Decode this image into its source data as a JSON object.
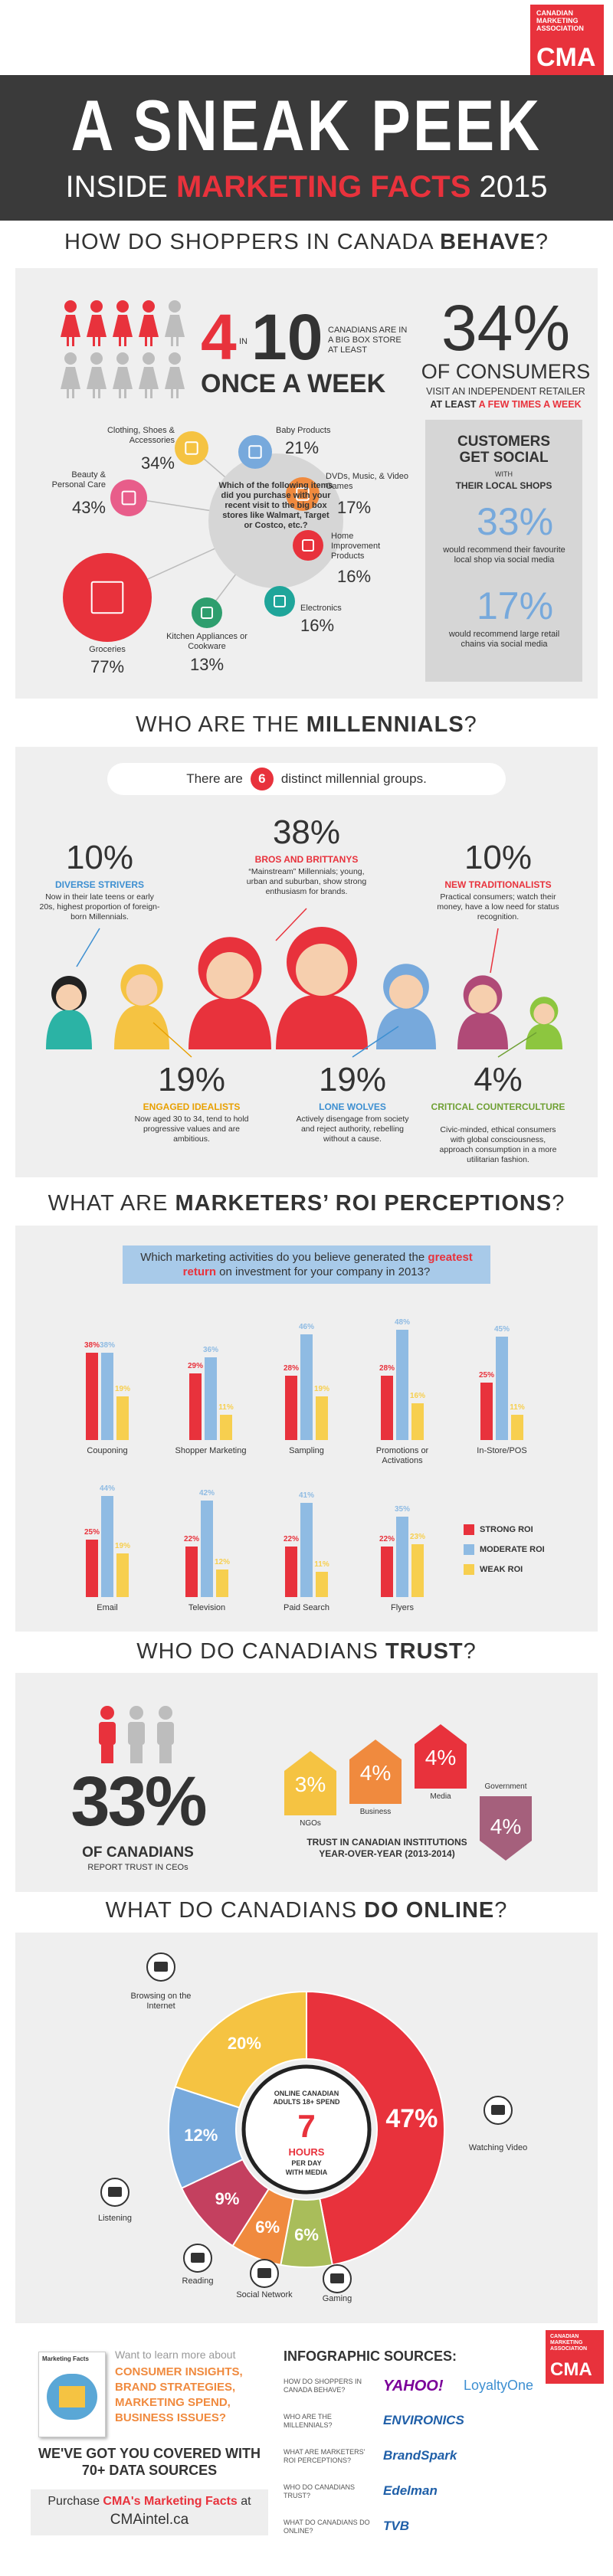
{
  "header": {
    "org": "CANADIAN MARKETING ASSOCIATION",
    "logo": "CMA",
    "title": "A SNEAK PEEK",
    "subtitle": [
      "INSIDE",
      "MARKETING FACTS",
      "2015"
    ]
  },
  "shoppers": {
    "heading": [
      "HOW DO SHOPPERS IN CANADA",
      "BEHAVE",
      "?"
    ],
    "big_box": {
      "count": 4,
      "in": "IN",
      "total": 10,
      "text": "CANADIANS ARE IN A BIG BOX STORE AT LEAST",
      "frequency": "ONCE A WEEK"
    },
    "question": "Which of the following items did you purchase with your recent visit to the big box stores like Walmart, Target or Costco, etc.?",
    "items": [
      {
        "label": "Clothing, Shoes & Accessories",
        "value": "34%"
      },
      {
        "label": "Baby Products",
        "value": "21%"
      },
      {
        "label": "DVDs, Music, & Video Games",
        "value": "17%"
      },
      {
        "label": "Home Improvement Products",
        "value": "16%"
      },
      {
        "label": "Electronics",
        "value": "16%"
      },
      {
        "label": "Kitchen Appliances or Cookware",
        "value": "13%"
      },
      {
        "label": "Groceries",
        "value": "77%"
      },
      {
        "label": "Beauty & Personal Care",
        "value": "43%"
      }
    ],
    "independent": {
      "value": "34%",
      "label": "OF CONSUMERS",
      "text": "VISIT AN INDEPENDENT RETAILER",
      "at_least": "AT LEAST",
      "frequency": "A FEW TIMES A WEEK"
    },
    "social": {
      "title": "CUSTOMERS GET SOCIAL",
      "with": "WITH",
      "subtitle": "THEIR LOCAL SHOPS",
      "stats": [
        {
          "value": "33%",
          "text": "would recommend their favourite local shop via social media"
        },
        {
          "value": "17%",
          "text": "would recommend large retail chains via social media"
        }
      ]
    }
  },
  "millennials": {
    "heading": [
      "WHO ARE THE",
      "MILLENNIALS",
      "?"
    ],
    "intro": [
      "There are",
      "6",
      "distinct millennial groups."
    ],
    "groups": [
      {
        "value": "10%",
        "name": "DIVERSE STRIVERS",
        "text": "Now in their late teens or early 20s, highest proportion of foreign-born Millennials."
      },
      {
        "value": "38%",
        "name": "BROS AND BRITTANYS",
        "text": "“Mainstream” Millennials; young, urban and suburban, show strong enthusiasm for brands."
      },
      {
        "value": "10%",
        "name": "NEW TRADITIONALISTS",
        "text": "Practical consumers; watch their money, have a low need for status recognition."
      },
      {
        "value": "19%",
        "name": "ENGAGED IDEALISTS",
        "text": "Now aged 30 to 34, tend to hold progressive values and are ambitious."
      },
      {
        "value": "19%",
        "name": "LONE WOLVES",
        "text": "Actively disengage from society and reject authority, rebelling without a cause."
      },
      {
        "value": "4%",
        "name": "CRITICAL COUNTERCULTURE",
        "text": "Civic-minded, ethical consumers with global consciousness, approach consumption in a more utilitarian fashion."
      }
    ]
  },
  "roi": {
    "heading": [
      "WHAT ARE",
      "MARKETERS’ ROI PERCEPTIONS",
      "?"
    ],
    "type": "bar",
    "question": [
      "Which marketing activities do you believe generated the",
      "greatest return",
      "on investment for your company in 2013?"
    ],
    "categories": [
      "Couponing",
      "Shopper Marketing",
      "Sampling",
      "Promotions or Activations",
      "In-Store/POS",
      "Email",
      "Television",
      "Paid Search",
      "Flyers"
    ],
    "series": [
      {
        "name": "STRONG ROI",
        "color": "#e8323c",
        "values": [
          38,
          29,
          28,
          28,
          25,
          25,
          22,
          22,
          22
        ],
        "value_labels": [
          "38%",
          "29%",
          "28%",
          "28%",
          "25%",
          "25%",
          "22%",
          "22%",
          "22%"
        ]
      },
      {
        "name": "MODERATE ROI",
        "color": "#8fbbe3",
        "values": [
          38,
          36,
          46,
          48,
          45,
          44,
          42,
          41,
          35
        ],
        "value_labels": [
          "38%",
          "36%",
          "46%",
          "48%",
          "45%",
          "44%",
          "42%",
          "41%",
          "35%"
        ]
      },
      {
        "name": "WEAK ROI",
        "color": "#f7cf4f",
        "values": [
          19,
          11,
          19,
          16,
          11,
          19,
          12,
          11,
          23
        ],
        "value_labels": [
          "19%",
          "11%",
          "19%",
          "16%",
          "11%",
          "19%",
          "12%",
          "11%",
          "23%"
        ]
      }
    ]
  },
  "trust": {
    "heading": [
      "WHO DO CANADIANS",
      "TRUST",
      "?"
    ],
    "ceo": {
      "value": "33%",
      "label": "OF CANADIANS",
      "text": "REPORT TRUST IN CEOs"
    },
    "institutions": [
      {
        "name": "NGOs",
        "value": "3%",
        "color": "#f5c342"
      },
      {
        "name": "Business",
        "value": "4%",
        "color": "#f08a3e"
      },
      {
        "name": "Media",
        "value": "4%",
        "color": "#e8323c"
      },
      {
        "name": "Government",
        "value": "4%",
        "color": "#a5607c"
      }
    ],
    "caption": "TRUST IN CANADIAN INSTITUTIONS YEAR-OVER-YEAR (2013-2014)"
  },
  "online": {
    "heading": [
      "WHAT DO CANADIANS",
      "DO ONLINE",
      "?"
    ],
    "type": "pie",
    "categories": [
      "Watching Video",
      "Gaming",
      "Social Network",
      "Reading",
      "Listening",
      "Browsing on the Internet"
    ],
    "values": [
      47,
      6,
      6,
      9,
      12,
      20
    ],
    "value_labels": [
      "47%",
      "6%",
      "6%",
      "9%",
      "12%",
      "20%"
    ],
    "colors": [
      "#e8323c",
      "#a9bd5a",
      "#f08a3e",
      "#c4405f",
      "#77a9dc",
      "#f5c342"
    ],
    "center": [
      "ONLINE CANADIAN ADULTS 18+ SPEND",
      "7",
      "HOURS",
      "PER DAY",
      "WITH MEDIA"
    ]
  },
  "footer": {
    "book": "Marketing Facts",
    "intro": "Want to learn more about",
    "topics": [
      "CONSUMER INSIGHTS,",
      "BRAND STRATEGIES,",
      "MARKETING SPEND,",
      "BUSINESS ISSUES?"
    ],
    "covered": "WE'VE GOT YOU COVERED WITH 70+ DATA SOURCES",
    "purchase": [
      "Purchase",
      "CMA's Marketing Facts",
      "at",
      "CMAintel.ca"
    ],
    "sources_title": "INFOGRAPHIC SOURCES:",
    "sources": [
      {
        "section": "HOW DO SHOPPERS IN CANADA BEHAVE?",
        "logos": [
          "YAHOO!",
          "LoyaltyOne"
        ]
      },
      {
        "section": "WHO ARE THE MILLENNIALS?",
        "logos": [
          "ENVIRONICS"
        ]
      },
      {
        "section": "WHAT ARE MARKETERS' ROI PERCEPTIONS?",
        "logos": [
          "BrandSpark"
        ]
      },
      {
        "section": "WHO DO CANADIANS TRUST?",
        "logos": [
          "Edelman"
        ]
      },
      {
        "section": "WHAT DO CANADIANS DO ONLINE?",
        "logos": [
          "TVB"
        ]
      }
    ]
  }
}
